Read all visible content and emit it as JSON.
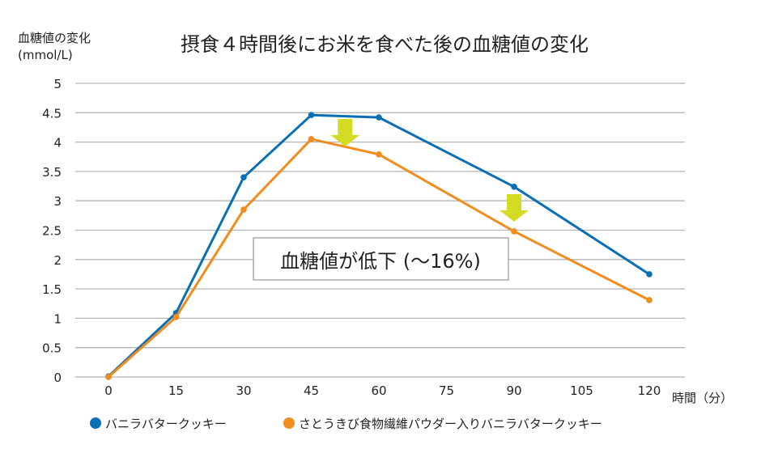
{
  "chart_data": {
    "type": "line",
    "title": "摂食４時間後にお米を食べた後の血糖値の変化",
    "ylabel": "血糖値の変化",
    "ylabel_unit": "(mmol/L)",
    "xlabel": "時間（分）",
    "x": [
      0,
      15,
      30,
      45,
      60,
      90,
      120
    ],
    "xticks": [
      0,
      15,
      30,
      45,
      60,
      75,
      90,
      105,
      120
    ],
    "ylim": [
      0,
      5
    ],
    "yticks": [
      0,
      0.5,
      1,
      1.5,
      2,
      2.5,
      3,
      3.5,
      4,
      4.5,
      5
    ],
    "grid": true,
    "legend_position": "bottom",
    "series": [
      {
        "name": "バニラバタークッキー",
        "color": "#0a70b5",
        "values": [
          0.01,
          1.09,
          3.4,
          4.46,
          4.42,
          3.24,
          1.75
        ]
      },
      {
        "name": "さとうきび食物繊維パウダー入りバニラバタークッキー",
        "color": "#f18c1f",
        "values": [
          0.0,
          1.02,
          2.85,
          4.05,
          3.79,
          2.48,
          1.31
        ]
      }
    ],
    "annotation": {
      "text": "血糖値が低下 (～16%)",
      "arrow_color": "#d5da22",
      "arrows_at_x": [
        52.5,
        90
      ]
    }
  }
}
